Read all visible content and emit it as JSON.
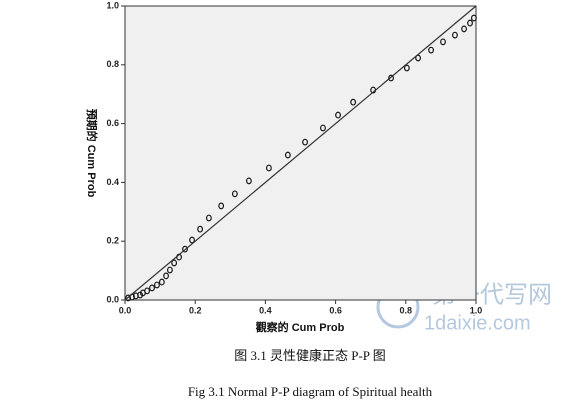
{
  "chart_data": {
    "type": "scatter",
    "x_label": "觀察的 Cum Prob",
    "y_label": "預期的 Cum Prob",
    "xlim": [
      0,
      1
    ],
    "ylim": [
      0,
      1
    ],
    "xticks": [
      {
        "value": 0,
        "label": "0.0"
      },
      0.2,
      0.4,
      0.6,
      0.8,
      {
        "value": 1,
        "label": "1.0"
      }
    ],
    "yticks": [
      {
        "value": 0,
        "label": "0.0"
      },
      0.2,
      0.4,
      0.6,
      0.8,
      {
        "value": 1,
        "label": "1.0"
      }
    ],
    "background": "#f0f0f0",
    "series": [
      {
        "type": "scatter",
        "color": "#111111",
        "x": [
          0.009,
          0.02,
          0.031,
          0.043,
          0.051,
          0.063,
          0.077,
          0.091,
          0.105,
          0.117,
          0.128,
          0.14,
          0.154,
          0.171,
          0.191,
          0.214,
          0.239,
          0.274,
          0.313,
          0.353,
          0.41,
          0.464,
          0.513,
          0.564,
          0.607,
          0.65,
          0.707,
          0.758,
          0.803,
          0.835,
          0.872,
          0.906,
          0.94,
          0.966,
          0.983,
          0.994
        ],
        "values": [
          0.007,
          0.01,
          0.014,
          0.017,
          0.024,
          0.031,
          0.041,
          0.051,
          0.061,
          0.082,
          0.102,
          0.126,
          0.146,
          0.173,
          0.204,
          0.241,
          0.279,
          0.32,
          0.361,
          0.405,
          0.449,
          0.493,
          0.537,
          0.585,
          0.629,
          0.673,
          0.714,
          0.755,
          0.789,
          0.823,
          0.85,
          0.878,
          0.901,
          0.922,
          0.942,
          0.959
        ]
      },
      {
        "type": "line",
        "color": "#333333",
        "x": [
          0,
          1
        ],
        "values": [
          0,
          1
        ]
      }
    ]
  },
  "captions": [
    "图 3.1 灵性健康正态 P-P 图",
    "Fig 3.1 Normal P-P diagram of Spiritual health"
  ],
  "watermark": {
    "brand": "第一代写网",
    "site": "1daixie.com"
  }
}
